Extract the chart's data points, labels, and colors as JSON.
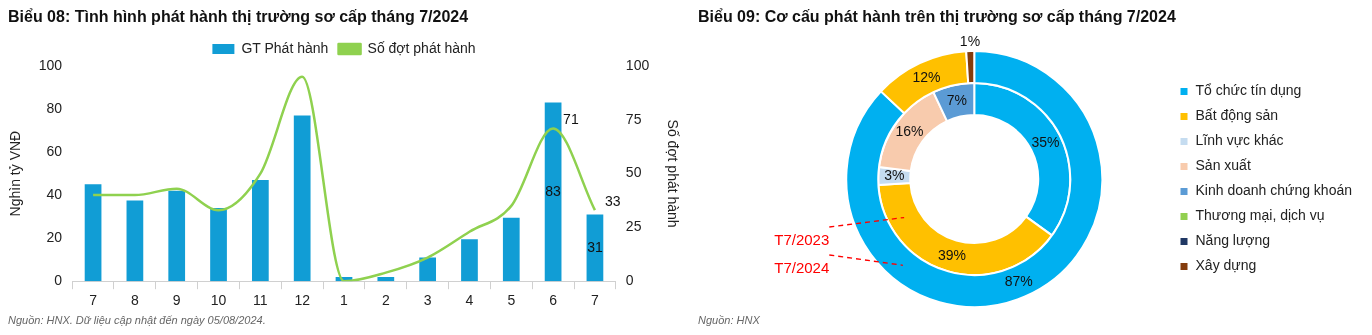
{
  "chart_data": [
    {
      "type": "bar",
      "title": "Biểu 08: Tình hình phát hành thị trường sơ cấp tháng 7/2024",
      "ylabel": "Nghìn tỷ VNĐ",
      "y2label": "Số đợt phát hành",
      "categories": [
        "7",
        "8",
        "9",
        "10",
        "11",
        "12",
        "1",
        "2",
        "3",
        "4",
        "5",
        "6",
        "7"
      ],
      "series": [
        {
          "name": "GT Phát hành",
          "type": "bar",
          "color": "#119dd5",
          "values": [
            45,
            37.5,
            42,
            34,
            47,
            77,
            2,
            2,
            11,
            19.5,
            29.5,
            83,
            31
          ],
          "value_labels": [
            null,
            null,
            null,
            null,
            null,
            null,
            null,
            null,
            null,
            null,
            null,
            "83",
            "31"
          ]
        },
        {
          "name": "Số đợt phát hành",
          "type": "line",
          "axis": "y2",
          "color": "#8fd14f",
          "values": [
            40,
            40,
            43,
            33,
            50,
            95,
            0,
            4,
            11,
            23,
            35,
            71,
            33
          ],
          "value_labels": [
            null,
            null,
            null,
            null,
            null,
            null,
            null,
            null,
            null,
            null,
            null,
            "71",
            "33"
          ]
        }
      ],
      "ylim": [
        0,
        100
      ],
      "yticks": [
        0,
        20,
        40,
        60,
        80,
        100
      ],
      "y2lim": [
        0,
        100
      ],
      "y2ticks": [
        0,
        25,
        50,
        75,
        100
      ],
      "grid": false,
      "legend": "top",
      "marker": "none",
      "annotations": [
        "Nguồn: HNX. Dữ liệu cập nhật đến ngày 05/08/2024."
      ]
    },
    {
      "type": "donut",
      "title": "Biểu 09: Cơ cấu phát hành trên thị trường sơ cấp tháng 7/2024",
      "categories": [
        "Tổ chức tín dụng",
        "Bất động sản",
        "Lĩnh vực khác",
        "Sản xuất",
        "Kinh doanh chứng khoán",
        "Thương mại, dịch vụ",
        "Năng lượng",
        "Xây dựng"
      ],
      "colors": [
        "#00b0f0",
        "#ffc000",
        "#c5dcf0",
        "#f8cbad",
        "#5b9bd5",
        "#92d050",
        "#203864",
        "#843c0c"
      ],
      "series": [
        {
          "name": "T7/2024",
          "values": [
            87,
            12,
            0,
            0,
            0,
            0,
            0,
            1
          ],
          "value_labels": [
            "87%",
            "12%",
            null,
            null,
            null,
            null,
            null,
            "1%"
          ]
        },
        {
          "name": "T7/2023",
          "values": [
            35,
            39,
            3,
            16,
            7,
            0,
            0,
            0
          ],
          "value_labels": [
            "35%",
            "39%",
            "3%",
            "16%",
            "7%",
            null,
            null,
            null
          ]
        }
      ],
      "legend": "right",
      "annotations": [
        "Nguồn: HNX"
      ]
    }
  ]
}
